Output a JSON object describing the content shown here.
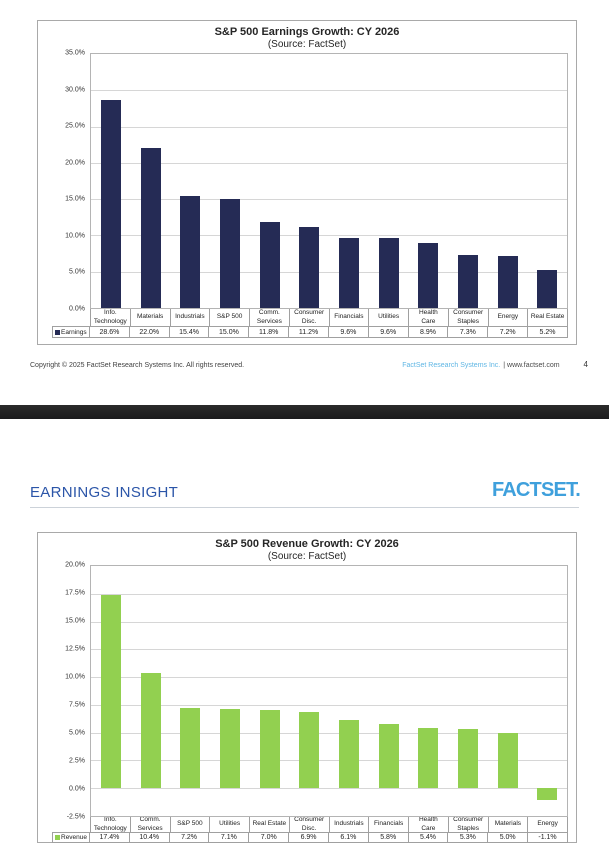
{
  "colors": {
    "earnings_bar": "#252B55",
    "revenue_bar": "#92D050",
    "factset_logo_blue": "#3FA0DC",
    "insight_title_blue": "#2B55A8",
    "footer_link_blue": "#5FB6E4",
    "separator_dark": "#232323"
  },
  "page1": {
    "footer": {
      "copyright": "Copyright © 2025 FactSet Research Systems Inc. All rights reserved.",
      "source_company": "FactSet Research Systems Inc.",
      "source_site": "| www.factset.com",
      "page_number": "4"
    }
  },
  "page2": {
    "header": {
      "title": "EARNINGS INSIGHT",
      "logo": "FACTSET."
    }
  },
  "chart_data": [
    {
      "type": "bar",
      "title": "S&P 500 Earnings Growth: CY 2026",
      "subtitle": "(Source: FactSet)",
      "series_name": "Earnings",
      "color": "#252B55",
      "categories": [
        "Info.\nTechnology",
        "Materials",
        "Industrials",
        "S&P 500",
        "Comm.\nServices",
        "Consumer\nDisc.",
        "Financials",
        "Utilities",
        "Health\nCare",
        "Consumer\nStaples",
        "Energy",
        "Real Estate"
      ],
      "values": [
        28.6,
        22.0,
        15.4,
        15.0,
        11.8,
        11.2,
        9.6,
        9.6,
        8.9,
        7.3,
        7.2,
        5.2
      ],
      "value_labels": [
        "28.6%",
        "22.0%",
        "15.4%",
        "15.0%",
        "11.8%",
        "11.2%",
        "9.6%",
        "9.6%",
        "8.9%",
        "7.3%",
        "7.2%",
        "5.2%"
      ],
      "xlabel": "",
      "ylabel": "",
      "ylim": [
        0,
        35
      ],
      "yticks": [
        35,
        30,
        25,
        20,
        15,
        10,
        5,
        0
      ],
      "ytick_labels": [
        "35.0%",
        "30.0%",
        "25.0%",
        "20.0%",
        "15.0%",
        "10.0%",
        "5.0%",
        "0.0%"
      ],
      "grid": true,
      "legend_position": "bottom-left-table"
    },
    {
      "type": "bar",
      "title": "S&P 500 Revenue Growth: CY 2026",
      "subtitle": "(Source: FactSet)",
      "series_name": "Revenue",
      "color": "#92D050",
      "categories": [
        "Info.\nTechnology",
        "Comm.\nServices",
        "S&P 500",
        "Utilities",
        "Real Estate",
        "Consumer\nDisc.",
        "Industrials",
        "Financials",
        "Health\nCare",
        "Consumer\nStaples",
        "Materials",
        "Energy"
      ],
      "values": [
        17.4,
        10.4,
        7.2,
        7.1,
        7.0,
        6.9,
        6.1,
        5.8,
        5.4,
        5.3,
        5.0,
        -1.1
      ],
      "value_labels": [
        "17.4%",
        "10.4%",
        "7.2%",
        "7.1%",
        "7.0%",
        "6.9%",
        "6.1%",
        "5.8%",
        "5.4%",
        "5.3%",
        "5.0%",
        "-1.1%"
      ],
      "xlabel": "",
      "ylabel": "",
      "ylim": [
        -2.5,
        20
      ],
      "yticks": [
        20,
        17.5,
        15,
        12.5,
        10,
        7.5,
        5,
        2.5,
        0,
        -2.5
      ],
      "ytick_labels": [
        "20.0%",
        "17.5%",
        "15.0%",
        "12.5%",
        "10.0%",
        "7.5%",
        "5.0%",
        "2.5%",
        "0.0%",
        "-2.5%"
      ],
      "grid": true,
      "legend_position": "bottom-left-table"
    }
  ]
}
